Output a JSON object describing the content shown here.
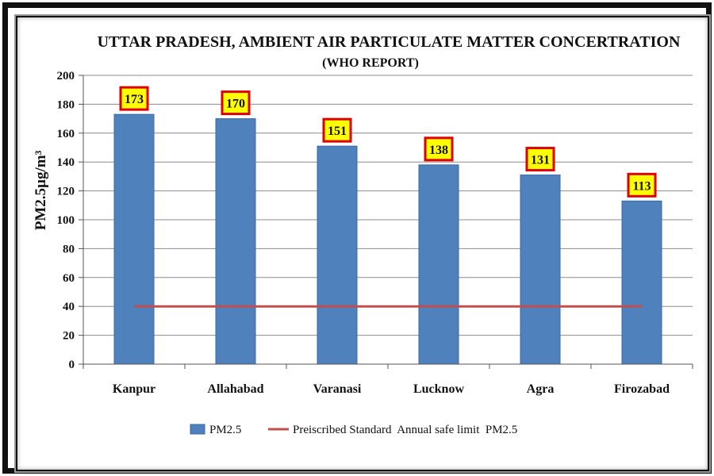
{
  "colors": {
    "bar": "#4f81bd",
    "bar_edge": "#3a6aa3",
    "limit_line": "#c0504d",
    "label_fill": "#ffff00",
    "label_border": "#e00000",
    "grid": "#8c8c8c"
  },
  "chart_data": {
    "type": "bar",
    "title": "UTTAR PRADESH,  AMBIENT AIR PARTICULATE MATTER CONCERTRATION",
    "subtitle": "(WHO REPORT)",
    "xlabel": "",
    "ylabel": "PM2.5µg/m³",
    "ylim": [
      0,
      200
    ],
    "yticks": [
      "0",
      "20",
      "40",
      "60",
      "80",
      "100",
      "120",
      "140",
      "160",
      "180",
      "200"
    ],
    "grid": true,
    "categories": [
      "Kanpur",
      "Allahabad",
      "Varanasi",
      "Lucknow",
      "Agra",
      "Firozabad"
    ],
    "series": [
      {
        "name": "PM2.5",
        "kind": "bar",
        "values": [
          173,
          170,
          151,
          138,
          131,
          113
        ],
        "data_labels": [
          "173",
          "170",
          "151",
          "138",
          "131",
          "113"
        ]
      },
      {
        "name": "Preiscribed Standard  Annual safe limit  PM2.5",
        "kind": "line",
        "values": [
          40,
          40,
          40,
          40,
          40,
          40
        ]
      }
    ],
    "legend": {
      "placement": "bottom",
      "entries": [
        "PM2.5",
        "Preiscribed Standard  Annual safe limit  PM2.5"
      ]
    }
  }
}
